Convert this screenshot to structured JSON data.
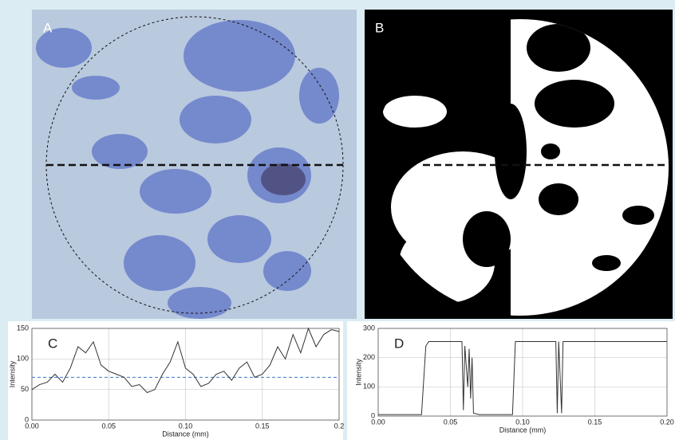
{
  "panels": [
    {
      "label": "A"
    },
    {
      "label": "B"
    }
  ],
  "chart_data": [
    {
      "type": "line",
      "panel_label": "C",
      "xlabel": "Distance (mm)",
      "ylabel": "Intensity",
      "x": [
        0,
        0.005,
        0.01,
        0.015,
        0.02,
        0.025,
        0.03,
        0.035,
        0.04,
        0.045,
        0.05,
        0.055,
        0.06,
        0.065,
        0.07,
        0.075,
        0.08,
        0.085,
        0.09,
        0.095,
        0.1,
        0.105,
        0.11,
        0.115,
        0.12,
        0.125,
        0.13,
        0.135,
        0.14,
        0.145,
        0.15,
        0.155,
        0.16,
        0.165,
        0.17,
        0.175,
        0.18,
        0.185,
        0.19,
        0.195,
        0.2
      ],
      "values": [
        50,
        58,
        62,
        75,
        62,
        85,
        120,
        110,
        128,
        90,
        80,
        75,
        70,
        55,
        58,
        45,
        50,
        75,
        95,
        128,
        85,
        75,
        55,
        60,
        75,
        80,
        65,
        85,
        95,
        70,
        75,
        90,
        120,
        100,
        140,
        110,
        150,
        120,
        140,
        148,
        145
      ],
      "color": "#333333",
      "reference_line": {
        "value": 70,
        "color": "#3a78c8"
      },
      "xlim": [
        0,
        0.2
      ],
      "ylim": [
        0,
        150
      ],
      "xticks": [
        {
          "value": 0,
          "label": "0.00"
        },
        {
          "value": 0.05,
          "label": "0.05"
        },
        {
          "value": 0.1,
          "label": "0.10"
        },
        {
          "value": 0.15,
          "label": "0.15"
        },
        0.2
      ],
      "yticks": [
        0,
        50,
        100,
        150
      ],
      "grid": true
    },
    {
      "type": "line",
      "panel_label": "D",
      "xlabel": "Distance (mm)",
      "ylabel": "Intensity",
      "x": [
        0,
        0.03,
        0.033,
        0.035,
        0.058,
        0.059,
        0.06,
        0.062,
        0.063,
        0.064,
        0.065,
        0.066,
        0.07,
        0.093,
        0.095,
        0.123,
        0.124,
        0.125,
        0.127,
        0.128,
        0.2
      ],
      "values": [
        5,
        5,
        240,
        255,
        255,
        20,
        240,
        100,
        230,
        60,
        200,
        10,
        5,
        5,
        255,
        255,
        10,
        255,
        10,
        255,
        255
      ],
      "color": "#333333",
      "xlim": [
        0,
        0.2
      ],
      "ylim": [
        0,
        300
      ],
      "xticks": [
        {
          "value": 0,
          "label": "0.00"
        },
        {
          "value": 0.05,
          "label": "0.05"
        },
        {
          "value": 0.1,
          "label": "0.10"
        },
        {
          "value": 0.15,
          "label": "0.15"
        },
        {
          "value": 0.2,
          "label": "0.20"
        }
      ],
      "yticks": [
        0,
        100,
        200,
        300
      ],
      "grid": true
    }
  ]
}
